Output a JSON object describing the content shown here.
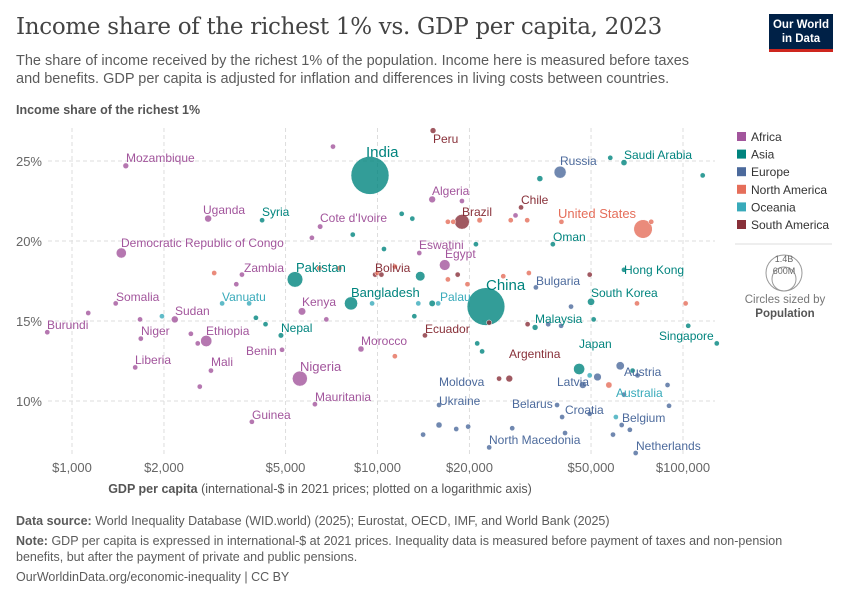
{
  "header": {
    "title": "Income share of the richest 1% vs. GDP per capita, 2023",
    "subtitle": "The share of income received by the richest 1% of the population. Income here is measured before taxes and benefits. GDP per capita is adjusted for inflation and differences in living costs between countries.",
    "logo_text": "Our World in Data"
  },
  "footer": {
    "source_label": "Data source:",
    "source": "World Inequality Database (WID.world) (2025); Eurostat, OECD, IMF, and World Bank (2025)",
    "note_label": "Note:",
    "note": "GDP per capita is expressed in international-$ at 2021 prices. Inequality data is measured before payment of taxes and non-pension benefits, but after the payment of private and public pensions.",
    "url": "OurWorldinData.org/economic-inequality | CC BY"
  },
  "chart_data": {
    "type": "scatter",
    "title": "Income share of the richest 1% vs. GDP per capita, 2023",
    "ylabel": "Income share of the richest 1%",
    "xlabel_bold": "GDP per capita",
    "xlabel_rest": "(international-$ in 2021 prices; plotted on a logarithmic axis)",
    "x_scale": "log",
    "xlim": [
      800,
      130000
    ],
    "ylim": [
      6,
      27.5
    ],
    "x_ticks": [
      {
        "v": 1000,
        "label": "$1,000"
      },
      {
        "v": 2000,
        "label": "$2,000"
      },
      {
        "v": 5000,
        "label": "$5,000"
      },
      {
        "v": 10000,
        "label": "$10,000"
      },
      {
        "v": 20000,
        "label": "$20,000"
      },
      {
        "v": 50000,
        "label": "$50,000"
      },
      {
        "v": 100000,
        "label": "$100,000"
      }
    ],
    "y_ticks": [
      {
        "v": 10,
        "label": "10%"
      },
      {
        "v": 15,
        "label": "15%"
      },
      {
        "v": 20,
        "label": "20%"
      },
      {
        "v": 25,
        "label": "25%"
      }
    ],
    "grid": true,
    "legend_position": "right",
    "colors": {
      "Africa": "#a2559c",
      "Asia": "#00847e",
      "Europe": "#4c6a9c",
      "North America": "#e56e5a",
      "Oceania": "#38aaba",
      "South America": "#883039"
    },
    "legend": [
      "Africa",
      "Asia",
      "Europe",
      "North America",
      "Oceania",
      "South America"
    ],
    "size_legend": {
      "title": "Circles sized by",
      "variable": "Population",
      "large": "1.4B",
      "small": "600M"
    },
    "labeled_points": [
      {
        "name": "India",
        "region": "Asia",
        "gdp": 9450,
        "share": 24.1,
        "pop": 1430000000
      },
      {
        "name": "China",
        "region": "Asia",
        "gdp": 22650,
        "share": 15.9,
        "pop": 1410000000
      },
      {
        "name": "Mozambique",
        "region": "Africa",
        "gdp": 1500,
        "share": 24.7,
        "pop": 33000000
      },
      {
        "name": "Uganda",
        "region": "Africa",
        "gdp": 2790,
        "share": 21.4,
        "pop": 48000000
      },
      {
        "name": "Syria",
        "region": "Asia",
        "gdp": 4190,
        "share": 21.3,
        "pop": 23000000
      },
      {
        "name": "Cote d'Ivoire",
        "region": "Africa",
        "gdp": 6490,
        "share": 20.9,
        "pop": 29000000
      },
      {
        "name": "Democratic Republic of Congo",
        "region": "Africa",
        "gdp": 1450,
        "share": 19.25,
        "pop": 102000000
      },
      {
        "name": "Zambia",
        "region": "Africa",
        "gdp": 3600,
        "share": 17.9,
        "pop": 20000000
      },
      {
        "name": "Pakistan",
        "region": "Asia",
        "gdp": 5370,
        "share": 17.6,
        "pop": 240000000
      },
      {
        "name": "Bangladesh",
        "region": "Asia",
        "gdp": 8190,
        "share": 16.1,
        "pop": 172000000
      },
      {
        "name": "Kenya",
        "region": "Africa",
        "gdp": 5660,
        "share": 15.6,
        "pop": 55000000
      },
      {
        "name": "Somalia",
        "region": "Africa",
        "gdp": 1390,
        "share": 16.1,
        "pop": 18000000
      },
      {
        "name": "Sudan",
        "region": "Africa",
        "gdp": 2170,
        "share": 15.1,
        "pop": 48000000
      },
      {
        "name": "Vanuatu",
        "region": "Oceania",
        "gdp": 3100,
        "share": 16.1,
        "pop": 330000
      },
      {
        "name": "Burundi",
        "region": "Africa",
        "gdp": 830,
        "share": 14.3,
        "pop": 13000000
      },
      {
        "name": "Niger",
        "region": "Africa",
        "gdp": 1680,
        "share": 13.9,
        "pop": 27000000
      },
      {
        "name": "Ethiopia",
        "region": "Africa",
        "gdp": 2750,
        "share": 13.75,
        "pop": 126000000
      },
      {
        "name": "Nepal",
        "region": "Asia",
        "gdp": 4830,
        "share": 14.1,
        "pop": 30000000
      },
      {
        "name": "Benin",
        "region": "Africa",
        "gdp": 4870,
        "share": 13.2,
        "pop": 14000000
      },
      {
        "name": "Liberia",
        "region": "Africa",
        "gdp": 1610,
        "share": 12.1,
        "pop": 5400000
      },
      {
        "name": "Mali",
        "region": "Africa",
        "gdp": 2850,
        "share": 11.9,
        "pop": 23000000
      },
      {
        "name": "Nigeria",
        "region": "Africa",
        "gdp": 5570,
        "share": 11.4,
        "pop": 224000000
      },
      {
        "name": "Morocco",
        "region": "Africa",
        "gdp": 8830,
        "share": 13.25,
        "pop": 37000000
      },
      {
        "name": "Mauritania",
        "region": "Africa",
        "gdp": 6240,
        "share": 9.8,
        "pop": 4900000
      },
      {
        "name": "Guinea",
        "region": "Africa",
        "gdp": 3880,
        "share": 8.7,
        "pop": 14000000
      },
      {
        "name": "Peru",
        "region": "South America",
        "gdp": 15200,
        "share": 26.9,
        "pop": 34000000
      },
      {
        "name": "Russia",
        "region": "Europe",
        "gdp": 39600,
        "share": 24.3,
        "pop": 144000000
      },
      {
        "name": "Saudi Arabia",
        "region": "Asia",
        "gdp": 64100,
        "share": 24.9,
        "pop": 37000000
      },
      {
        "name": "Algeria",
        "region": "Africa",
        "gdp": 15100,
        "share": 22.6,
        "pop": 46000000
      },
      {
        "name": "Chile",
        "region": "South America",
        "gdp": 29500,
        "share": 22.1,
        "pop": 19600000
      },
      {
        "name": "Brazil",
        "region": "South America",
        "gdp": 18900,
        "share": 21.2,
        "pop": 216000000
      },
      {
        "name": "United States",
        "region": "North America",
        "gdp": 74000,
        "share": 20.75,
        "pop": 340000000
      },
      {
        "name": "Oman",
        "region": "Asia",
        "gdp": 37500,
        "share": 19.8,
        "pop": 4600000
      },
      {
        "name": "Eswatini",
        "region": "Africa",
        "gdp": 13700,
        "share": 19.25,
        "pop": 1200000
      },
      {
        "name": "Egypt",
        "region": "Africa",
        "gdp": 16600,
        "share": 18.5,
        "pop": 113000000
      },
      {
        "name": "Bolivia",
        "region": "South America",
        "gdp": 9820,
        "share": 17.9,
        "pop": 12400000
      },
      {
        "name": "Hong Kong",
        "region": "Asia",
        "gdp": 64100,
        "share": 18.2,
        "pop": 7500000
      },
      {
        "name": "Bulgaria",
        "region": "Europe",
        "gdp": 33000,
        "share": 17.1,
        "pop": 6700000
      },
      {
        "name": "South Korea",
        "region": "Asia",
        "gdp": 50000,
        "share": 16.2,
        "pop": 51700000
      },
      {
        "name": "Palau",
        "region": "Oceania",
        "gdp": 15800,
        "share": 16.1,
        "pop": 18000
      },
      {
        "name": "Malaysia",
        "region": "Asia",
        "gdp": 32800,
        "share": 14.6,
        "pop": 34000000
      },
      {
        "name": "Ecuador",
        "region": "South America",
        "gdp": 14300,
        "share": 14.1,
        "pop": 18000000
      },
      {
        "name": "Singapore",
        "region": "Asia",
        "gdp": 129000,
        "share": 13.6,
        "pop": 5900000
      },
      {
        "name": "Japan",
        "region": "Asia",
        "gdp": 45700,
        "share": 12.0,
        "pop": 124000000
      },
      {
        "name": "Argentina",
        "region": "South America",
        "gdp": 27000,
        "share": 11.4,
        "pop": 46000000
      },
      {
        "name": "Austria",
        "region": "Europe",
        "gdp": 64100,
        "share": 10.4,
        "pop": 9100000
      },
      {
        "name": "Latvia",
        "region": "Europe",
        "gdp": 38700,
        "share": 9.75,
        "pop": 1900000
      },
      {
        "name": "Moldova",
        "region": "Europe",
        "gdp": 15900,
        "share": 9.75,
        "pop": 2500000
      },
      {
        "name": "Australia",
        "region": "Oceania",
        "gdp": 60300,
        "share": 9.0,
        "pop": 26500000
      },
      {
        "name": "Ukraine",
        "region": "Europe",
        "gdp": 15900,
        "share": 8.5,
        "pop": 37000000
      },
      {
        "name": "Belarus",
        "region": "Europe",
        "gdp": 27600,
        "share": 8.3,
        "pop": 9500000
      },
      {
        "name": "Croatia",
        "region": "Europe",
        "gdp": 41100,
        "share": 8.0,
        "pop": 3900000
      },
      {
        "name": "Belgium",
        "region": "Europe",
        "gdp": 59000,
        "share": 7.9,
        "pop": 11800000
      },
      {
        "name": "North Macedonia",
        "region": "Europe",
        "gdp": 23200,
        "share": 7.1,
        "pop": 1800000
      },
      {
        "name": "Netherlands",
        "region": "Europe",
        "gdp": 70000,
        "share": 6.75,
        "pop": 17900000
      }
    ],
    "other_points": [
      {
        "region": "Africa",
        "gdp": 7150,
        "share": 25.9,
        "pop": 12000000
      },
      {
        "region": "Africa",
        "gdp": 18900,
        "share": 22.5,
        "pop": 6000000
      },
      {
        "region": "Africa",
        "gdp": 6100,
        "share": 20.2,
        "pop": 9000000
      },
      {
        "region": "Africa",
        "gdp": 3450,
        "share": 17.3,
        "pop": 6000000
      },
      {
        "region": "Africa",
        "gdp": 1130,
        "share": 15.5,
        "pop": 5000000
      },
      {
        "region": "Africa",
        "gdp": 1670,
        "share": 15.1,
        "pop": 20000000
      },
      {
        "region": "Africa",
        "gdp": 2450,
        "share": 14.2,
        "pop": 9000000
      },
      {
        "region": "Africa",
        "gdp": 2580,
        "share": 13.6,
        "pop": 6000000
      },
      {
        "region": "Africa",
        "gdp": 2620,
        "share": 10.9,
        "pop": 5000000
      },
      {
        "region": "Africa",
        "gdp": 6800,
        "share": 15.1,
        "pop": 17000000
      },
      {
        "region": "Africa",
        "gdp": 28300,
        "share": 21.6,
        "pop": 2000000
      },
      {
        "region": "Asia",
        "gdp": 12000,
        "share": 21.7,
        "pop": 3000000
      },
      {
        "region": "Asia",
        "gdp": 13000,
        "share": 21.4,
        "pop": 4000000
      },
      {
        "region": "Asia",
        "gdp": 34000,
        "share": 23.9,
        "pop": 36000000
      },
      {
        "region": "Asia",
        "gdp": 116000,
        "share": 24.1,
        "pop": 2700000
      },
      {
        "region": "Asia",
        "gdp": 57800,
        "share": 25.2,
        "pop": 3000000
      },
      {
        "region": "Asia",
        "gdp": 10500,
        "share": 19.5,
        "pop": 3000000
      },
      {
        "region": "Asia",
        "gdp": 8300,
        "share": 20.4,
        "pop": 5000000
      },
      {
        "region": "Asia",
        "gdp": 21000,
        "share": 19.8,
        "pop": 22000000
      },
      {
        "region": "Asia",
        "gdp": 13800,
        "share": 17.8,
        "pop": 89000000
      },
      {
        "region": "Asia",
        "gdp": 15100,
        "share": 16.1,
        "pop": 40000000
      },
      {
        "region": "Asia",
        "gdp": 13200,
        "share": 15.3,
        "pop": 6000000
      },
      {
        "region": "Asia",
        "gdp": 21200,
        "share": 13.6,
        "pop": 3000000
      },
      {
        "region": "Asia",
        "gdp": 22000,
        "share": 13.1,
        "pop": 3000000
      },
      {
        "region": "Asia",
        "gdp": 51000,
        "share": 15.1,
        "pop": 3000000
      },
      {
        "region": "Asia",
        "gdp": 68400,
        "share": 11.9,
        "pop": 3000000
      },
      {
        "region": "Asia",
        "gdp": 104000,
        "share": 14.7,
        "pop": 2000000
      },
      {
        "region": "Asia",
        "gdp": 4300,
        "share": 14.8,
        "pop": 3000000
      },
      {
        "region": "Asia",
        "gdp": 4000,
        "share": 15.2,
        "pop": 5000000
      },
      {
        "region": "Europe",
        "gdp": 43000,
        "share": 15.9,
        "pop": 10000000
      },
      {
        "region": "Europe",
        "gdp": 36200,
        "share": 14.8,
        "pop": 5000000
      },
      {
        "region": "Europe",
        "gdp": 39900,
        "share": 14.7,
        "pop": 3000000
      },
      {
        "region": "Europe",
        "gdp": 62300,
        "share": 12.2,
        "pop": 68000000
      },
      {
        "region": "Europe",
        "gdp": 52500,
        "share": 11.5,
        "pop": 59000000
      },
      {
        "region": "Europe",
        "gdp": 47000,
        "share": 11.0,
        "pop": 48000000
      },
      {
        "region": "Europe",
        "gdp": 71000,
        "share": 11.6,
        "pop": 9000000
      },
      {
        "region": "Europe",
        "gdp": 89000,
        "share": 11.0,
        "pop": 5000000
      },
      {
        "region": "Europe",
        "gdp": 14100,
        "share": 7.9,
        "pop": 3000000
      },
      {
        "region": "Europe",
        "gdp": 18100,
        "share": 8.25,
        "pop": 2000000
      },
      {
        "region": "Europe",
        "gdp": 19800,
        "share": 8.4,
        "pop": 3000000
      },
      {
        "region": "Europe",
        "gdp": 49500,
        "share": 9.2,
        "pop": 4000000
      },
      {
        "region": "Europe",
        "gdp": 40200,
        "share": 9.0,
        "pop": 2000000
      },
      {
        "region": "Europe",
        "gdp": 63000,
        "share": 8.5,
        "pop": 5000000
      },
      {
        "region": "Europe",
        "gdp": 67000,
        "share": 8.2,
        "pop": 5500000
      },
      {
        "region": "Europe",
        "gdp": 90000,
        "share": 9.7,
        "pop": 5000000
      },
      {
        "region": "North America",
        "gdp": 2920,
        "share": 18.0,
        "pop": 3000000
      },
      {
        "region": "North America",
        "gdp": 6450,
        "share": 18.3,
        "pop": 3000000
      },
      {
        "region": "North America",
        "gdp": 7500,
        "share": 18.3,
        "pop": 3000000
      },
      {
        "region": "North America",
        "gdp": 10000,
        "share": 18.0,
        "pop": 3000000
      },
      {
        "region": "North America",
        "gdp": 11400,
        "share": 18.4,
        "pop": 3000000
      },
      {
        "region": "North America",
        "gdp": 17000,
        "share": 17.6,
        "pop": 3000000
      },
      {
        "region": "North America",
        "gdp": 19700,
        "share": 17.3,
        "pop": 3000000
      },
      {
        "region": "North America",
        "gdp": 25800,
        "share": 17.8,
        "pop": 3000000
      },
      {
        "region": "North America",
        "gdp": 31300,
        "share": 18.0,
        "pop": 3000000
      },
      {
        "region": "North America",
        "gdp": 17000,
        "share": 21.2,
        "pop": 3000000
      },
      {
        "region": "North America",
        "gdp": 17700,
        "share": 21.2,
        "pop": 3000000
      },
      {
        "region": "North America",
        "gdp": 21600,
        "share": 21.3,
        "pop": 30000000
      },
      {
        "region": "North America",
        "gdp": 27300,
        "share": 21.3,
        "pop": 3000000
      },
      {
        "region": "North America",
        "gdp": 30900,
        "share": 21.3,
        "pop": 3000000
      },
      {
        "region": "North America",
        "gdp": 40000,
        "share": 21.2,
        "pop": 3000000
      },
      {
        "region": "North America",
        "gdp": 78700,
        "share": 21.2,
        "pop": 3000000
      },
      {
        "region": "North America",
        "gdp": 11400,
        "share": 12.8,
        "pop": 3000000
      },
      {
        "region": "North America",
        "gdp": 57200,
        "share": 11.0,
        "pop": 39000000
      },
      {
        "region": "North America",
        "gdp": 70700,
        "share": 16.1,
        "pop": 3000000
      },
      {
        "region": "North America",
        "gdp": 102000,
        "share": 16.1,
        "pop": 3000000
      },
      {
        "region": "Oceania",
        "gdp": 1970,
        "share": 15.3,
        "pop": 3000000
      },
      {
        "region": "Oceania",
        "gdp": 3800,
        "share": 16.1,
        "pop": 1000000
      },
      {
        "region": "Oceania",
        "gdp": 9600,
        "share": 16.1,
        "pop": 1000000
      },
      {
        "region": "Oceania",
        "gdp": 13600,
        "share": 16.1,
        "pop": 1000000
      },
      {
        "region": "Oceania",
        "gdp": 49500,
        "share": 11.6,
        "pop": 5000000
      },
      {
        "region": "South America",
        "gdp": 10300,
        "share": 17.9,
        "pop": 3000000
      },
      {
        "region": "South America",
        "gdp": 18300,
        "share": 17.9,
        "pop": 7000000
      },
      {
        "region": "South America",
        "gdp": 23200,
        "share": 14.9,
        "pop": 3000000
      },
      {
        "region": "South America",
        "gdp": 31000,
        "share": 14.8,
        "pop": 3000000
      },
      {
        "region": "South America",
        "gdp": 49500,
        "share": 17.9,
        "pop": 3000000
      },
      {
        "region": "South America",
        "gdp": 25000,
        "share": 11.4,
        "pop": 3000000
      }
    ]
  }
}
